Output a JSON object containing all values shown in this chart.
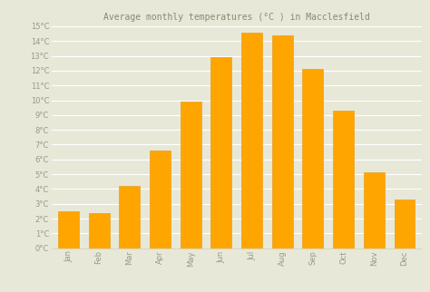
{
  "title": "Average monthly temperatures (°C ) in Macclesfield",
  "months": [
    "Jan",
    "Feb",
    "Mar",
    "Apr",
    "May",
    "Jun",
    "Jul",
    "Aug",
    "Sep",
    "Oct",
    "Nov",
    "Dec"
  ],
  "values": [
    2.5,
    2.4,
    4.2,
    6.6,
    9.9,
    12.9,
    14.6,
    14.4,
    12.1,
    9.3,
    5.1,
    3.3
  ],
  "bar_color": "#FFA500",
  "bar_edge_color": "#E8950A",
  "background_color": "#e8e8d8",
  "plot_bg_color": "#e8e8d8",
  "grid_color": "#ffffff",
  "ylim": [
    0,
    15
  ],
  "ytick_step": 1,
  "title_fontsize": 7,
  "tick_fontsize": 6,
  "tick_color": "#999988",
  "title_color": "#888877",
  "spine_color": "#ccccbb"
}
